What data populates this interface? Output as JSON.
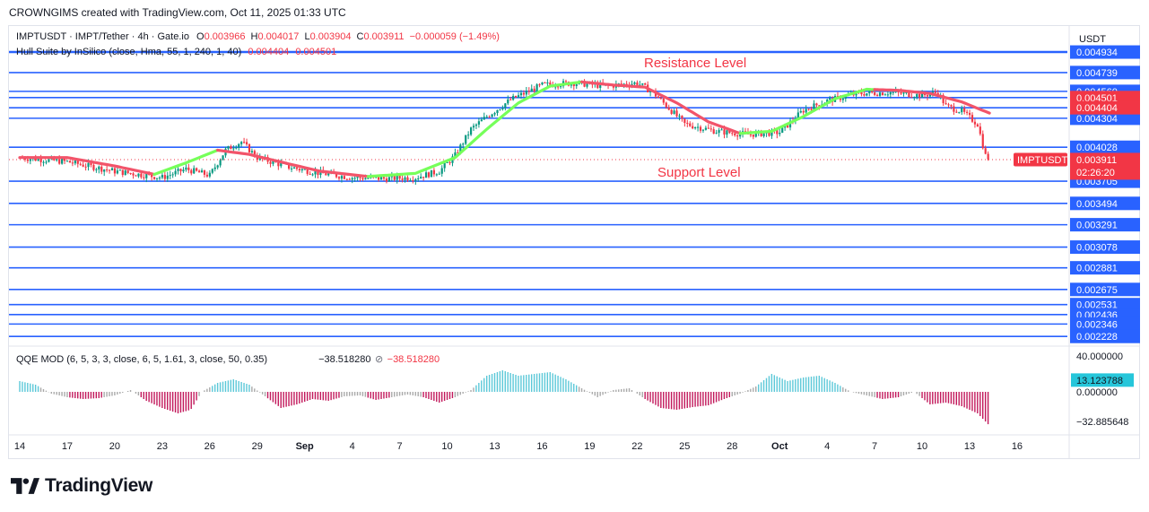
{
  "caption": "CROWNGIMS created with TradingView.com, Oct 11, 2025 01:33 UTC",
  "legend": {
    "symbol": "IMPTUSDT · IMPT/Tether · 4h · Gate.io",
    "o_label": "O",
    "o_value": "0.003966",
    "h_label": "H",
    "h_value": "0.004017",
    "l_label": "L",
    "l_value": "0.003904",
    "c_label": "C",
    "c_value": "0.003911",
    "change": "−0.000059 (−1.49%)",
    "hull_label": "Hull Suite by InSilico (close, Hma, 55, 1, 240, 1, 40)",
    "hull_v1": "0.004404",
    "hull_v2": "0.004501",
    "qqe_label": "QQE MOD (6, 5, 3, 3, close, 6, 5, 1.61, 3, close, 50, 0.35)",
    "qqe_v1": "−38.518280",
    "qqe_v2": "−38.518280"
  },
  "currency": "USDT",
  "annotations": {
    "resistance": "Resistance Level",
    "support": "Support Level"
  },
  "colors": {
    "line": "#2962ff",
    "up": "#089981",
    "down": "#f23645",
    "hull_up": "#76ff5a",
    "hull_down": "#f2546a",
    "qqe_blue": "#5bc8d8",
    "qqe_pink": "#c2185b",
    "qqe_gray": "#a9a9a9"
  },
  "chart_data": [
    {
      "type": "candlestick",
      "ylim": [
        0.00217,
        0.00496
      ],
      "price_levels": [
        0.004934,
        0.004739,
        0.00456,
        0.004304,
        0.004028,
        0.003705,
        0.003494,
        0.003291,
        0.003078,
        0.002881,
        0.002675,
        0.002531,
        0.002436,
        0.002346,
        0.002228
      ],
      "hull_levels": [
        0.004501,
        0.004404
      ],
      "current": {
        "label": "IMPTUSDT",
        "value": 0.003911,
        "price_text": "0.003911",
        "countdown": "02:26:20"
      },
      "x_ticks": [
        "14",
        "17",
        "20",
        "23",
        "26",
        "29",
        "Sep",
        "4",
        "7",
        "10",
        "13",
        "16",
        "19",
        "22",
        "25",
        "28",
        "Oct",
        "4",
        "7",
        "10",
        "13",
        "16"
      ],
      "price_path": [
        [
          0,
          0.00393
        ],
        [
          3,
          0.00389
        ],
        [
          6,
          0.0038
        ],
        [
          9,
          0.00374
        ],
        [
          10.5,
          0.00382
        ],
        [
          12,
          0.00376
        ],
        [
          13,
          0.004
        ],
        [
          14,
          0.00408
        ],
        [
          15,
          0.00393
        ],
        [
          17,
          0.00384
        ],
        [
          19,
          0.00378
        ],
        [
          21,
          0.00374
        ],
        [
          23,
          0.00373
        ],
        [
          25,
          0.00374
        ],
        [
          26.5,
          0.0038
        ],
        [
          27.5,
          0.00395
        ],
        [
          28.5,
          0.0042
        ],
        [
          29.5,
          0.00432
        ],
        [
          31,
          0.00448
        ],
        [
          33,
          0.00462
        ],
        [
          35,
          0.00464
        ],
        [
          37,
          0.00461
        ],
        [
          39,
          0.00464
        ],
        [
          40,
          0.00455
        ],
        [
          41,
          0.0044
        ],
        [
          42,
          0.00425
        ],
        [
          44,
          0.00418
        ],
        [
          46,
          0.00415
        ],
        [
          48,
          0.00417
        ],
        [
          49.5,
          0.00438
        ],
        [
          51,
          0.00447
        ],
        [
          53,
          0.00454
        ],
        [
          55,
          0.00455
        ],
        [
          57,
          0.00452
        ],
        [
          58,
          0.00455
        ],
        [
          58.5,
          0.00442
        ],
        [
          59.5,
          0.00437
        ],
        [
          60.5,
          0.00425
        ],
        [
          61,
          0.00395
        ],
        [
          61.3,
          0.00391
        ]
      ],
      "hull_path": [
        [
          0,
          0.00393
        ],
        [
          3,
          0.00393
        ],
        [
          6,
          0.00385
        ],
        [
          8.5,
          0.00377
        ],
        [
          10.5,
          0.00388
        ],
        [
          12.5,
          0.004
        ],
        [
          14.5,
          0.00396
        ],
        [
          17,
          0.00387
        ],
        [
          19,
          0.0038
        ],
        [
          22,
          0.00375
        ],
        [
          25,
          0.00378
        ],
        [
          27.5,
          0.00393
        ],
        [
          29.5,
          0.0042
        ],
        [
          31.5,
          0.00445
        ],
        [
          33.5,
          0.00461
        ],
        [
          35.5,
          0.00465
        ],
        [
          37.5,
          0.00462
        ],
        [
          39.5,
          0.0046
        ],
        [
          41.5,
          0.00445
        ],
        [
          43.5,
          0.00427
        ],
        [
          45.5,
          0.00416
        ],
        [
          47.5,
          0.00418
        ],
        [
          49.5,
          0.00432
        ],
        [
          51.5,
          0.00449
        ],
        [
          53.5,
          0.00458
        ],
        [
          55.5,
          0.00457
        ],
        [
          57.5,
          0.00454
        ],
        [
          59.5,
          0.00446
        ],
        [
          61.3,
          0.00435
        ]
      ],
      "hull_segments": [
        {
          "from": 0,
          "to": 8.5,
          "trend": "down"
        },
        {
          "from": 8.5,
          "to": 12.5,
          "trend": "up"
        },
        {
          "from": 12.5,
          "to": 22,
          "trend": "down"
        },
        {
          "from": 22,
          "to": 35.5,
          "trend": "up"
        },
        {
          "from": 35.5,
          "to": 45.5,
          "trend": "down"
        },
        {
          "from": 45.5,
          "to": 54,
          "trend": "up"
        },
        {
          "from": 54,
          "to": 61.3,
          "trend": "down"
        }
      ]
    },
    {
      "type": "histogram",
      "ylim": [
        -45,
        45
      ],
      "y_ticks": [
        40,
        13.123788,
        0,
        -32.885648
      ],
      "y_tick_text": [
        "40.000000",
        "13.123788",
        "0.000000",
        "−32.885648"
      ],
      "highlight_tick": "13.123788",
      "values_path": [
        [
          0,
          12
        ],
        [
          1,
          8
        ],
        [
          2,
          -2
        ],
        [
          3,
          -6
        ],
        [
          4,
          -8
        ],
        [
          5,
          -7
        ],
        [
          6,
          -4
        ],
        [
          7,
          2
        ],
        [
          8,
          -10
        ],
        [
          9,
          -18
        ],
        [
          10,
          -24
        ],
        [
          10.8,
          -20
        ],
        [
          11.5,
          0
        ],
        [
          12.5,
          10
        ],
        [
          13.5,
          14
        ],
        [
          14.5,
          8
        ],
        [
          15.5,
          -5
        ],
        [
          16.5,
          -18
        ],
        [
          17.5,
          -14
        ],
        [
          18.5,
          -8
        ],
        [
          19.5,
          -10
        ],
        [
          20.5,
          -5
        ],
        [
          21.5,
          -4
        ],
        [
          22.5,
          -9
        ],
        [
          23.5,
          -6
        ],
        [
          24.5,
          -3
        ],
        [
          25.5,
          -6
        ],
        [
          26.5,
          -12
        ],
        [
          27.5,
          -6
        ],
        [
          28.5,
          2
        ],
        [
          29.5,
          18
        ],
        [
          30.5,
          24
        ],
        [
          31.5,
          18
        ],
        [
          32.5,
          20
        ],
        [
          33.5,
          22
        ],
        [
          34.5,
          14
        ],
        [
          35.5,
          4
        ],
        [
          36.5,
          -6
        ],
        [
          37.5,
          2
        ],
        [
          38.5,
          4
        ],
        [
          39.5,
          -8
        ],
        [
          40.5,
          -18
        ],
        [
          41.5,
          -20
        ],
        [
          42.5,
          -17
        ],
        [
          43.5,
          -15
        ],
        [
          44.5,
          -8
        ],
        [
          45.5,
          -2
        ],
        [
          46.5,
          6
        ],
        [
          47.5,
          20
        ],
        [
          48.5,
          12
        ],
        [
          49.5,
          16
        ],
        [
          50.5,
          18
        ],
        [
          51.5,
          10
        ],
        [
          52.5,
          0
        ],
        [
          53.5,
          -4
        ],
        [
          54.5,
          -8
        ],
        [
          55.5,
          -6
        ],
        [
          56.5,
          0
        ],
        [
          57.5,
          -14
        ],
        [
          58.5,
          -12
        ],
        [
          59.5,
          -16
        ],
        [
          60.5,
          -24
        ],
        [
          61.3,
          -38.5
        ]
      ]
    }
  ]
}
